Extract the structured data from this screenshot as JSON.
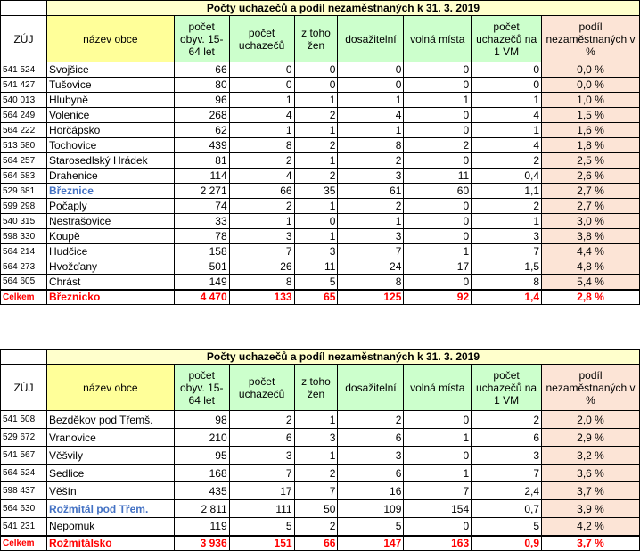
{
  "table1": {
    "title": "Počty uchazečů a podíl nezaměstnaných k 31. 3. 2019",
    "headers": {
      "zuj": "ZÚJ",
      "nazev": "název obce",
      "pocet_obyv": "počet obyv. 15-64 let",
      "pocet_uchazecu": "počet uchazečů",
      "z_toho_zen": "z toho žen",
      "dosazitelni": "dosažitelní",
      "volna_mista": "volná místa",
      "uchazecu_na_vm": "počet uchazečů na 1 VM",
      "podil": "podíl nezaměstnaných v %"
    },
    "rows": [
      {
        "zuj": "541 524",
        "obec": "Svojšice",
        "obyv": "66",
        "uch": "0",
        "zen": "0",
        "dos": "0",
        "vm": "0",
        "na_vm": "0",
        "podil": "0,0 %"
      },
      {
        "zuj": "541 427",
        "obec": "Tušovice",
        "obyv": "80",
        "uch": "0",
        "zen": "0",
        "dos": "0",
        "vm": "0",
        "na_vm": "0",
        "podil": "0,0 %"
      },
      {
        "zuj": "540 013",
        "obec": "Hlubyně",
        "obyv": "96",
        "uch": "1",
        "zen": "1",
        "dos": "1",
        "vm": "1",
        "na_vm": "1",
        "podil": "1,0 %"
      },
      {
        "zuj": "564 249",
        "obec": "Volenice",
        "obyv": "268",
        "uch": "4",
        "zen": "2",
        "dos": "4",
        "vm": "0",
        "na_vm": "4",
        "podil": "1,5 %"
      },
      {
        "zuj": "564 222",
        "obec": "Horčápsko",
        "obyv": "62",
        "uch": "1",
        "zen": "1",
        "dos": "1",
        "vm": "0",
        "na_vm": "1",
        "podil": "1,6 %"
      },
      {
        "zuj": "513 580",
        "obec": "Tochovice",
        "obyv": "439",
        "uch": "8",
        "zen": "2",
        "dos": "8",
        "vm": "2",
        "na_vm": "4",
        "podil": "1,8 %"
      },
      {
        "zuj": "564 257",
        "obec": "Starosedlský Hrádek",
        "obyv": "81",
        "uch": "2",
        "zen": "1",
        "dos": "2",
        "vm": "0",
        "na_vm": "2",
        "podil": "2,5 %"
      },
      {
        "zuj": "564 583",
        "obec": "Drahenice",
        "obyv": "114",
        "uch": "4",
        "zen": "2",
        "dos": "3",
        "vm": "11",
        "na_vm": "0,4",
        "podil": "2,6 %"
      },
      {
        "zuj": "529 681",
        "obec": "Březnice",
        "obyv": "2 271",
        "uch": "66",
        "zen": "35",
        "dos": "61",
        "vm": "60",
        "na_vm": "1,1",
        "podil": "2,7 %",
        "highlight": true
      },
      {
        "zuj": "599 298",
        "obec": "Počaply",
        "obyv": "74",
        "uch": "2",
        "zen": "1",
        "dos": "2",
        "vm": "0",
        "na_vm": "2",
        "podil": "2,7 %"
      },
      {
        "zuj": "540 315",
        "obec": "Nestrašovice",
        "obyv": "33",
        "uch": "1",
        "zen": "0",
        "dos": "1",
        "vm": "0",
        "na_vm": "1",
        "podil": "3,0 %"
      },
      {
        "zuj": "598 330",
        "obec": "Koupě",
        "obyv": "78",
        "uch": "3",
        "zen": "1",
        "dos": "3",
        "vm": "0",
        "na_vm": "3",
        "podil": "3,8 %"
      },
      {
        "zuj": "564 214",
        "obec": "Hudčice",
        "obyv": "158",
        "uch": "7",
        "zen": "3",
        "dos": "7",
        "vm": "1",
        "na_vm": "7",
        "podil": "4,4 %"
      },
      {
        "zuj": "564 273",
        "obec": "Hvožďany",
        "obyv": "501",
        "uch": "26",
        "zen": "11",
        "dos": "24",
        "vm": "17",
        "na_vm": "1,5",
        "podil": "4,8 %"
      },
      {
        "zuj": "564 605",
        "obec": "Chrást",
        "obyv": "149",
        "uch": "8",
        "zen": "5",
        "dos": "8",
        "vm": "0",
        "na_vm": "8",
        "podil": "5,4 %"
      }
    ],
    "total": {
      "zuj": "Celkem",
      "obec": "Březnicko",
      "obyv": "4 470",
      "uch": "133",
      "zen": "65",
      "dos": "125",
      "vm": "92",
      "na_vm": "1,4",
      "podil": "2,8 %"
    }
  },
  "table2": {
    "title": "Počty uchazečů a podíl nezaměstnaných k 31. 3. 2019",
    "headers": {
      "zuj": "ZÚJ",
      "nazev": "název obce",
      "pocet_obyv": "počet obyv. 15-64 let",
      "pocet_uchazecu": "počet uchazečů",
      "z_toho_zen": "z toho žen",
      "dosazitelni": "dosažitelní",
      "volna_mista": "volná místa",
      "uchazecu_na_vm": "počet uchazečů na 1 VM",
      "podil": "podíl nezaměstnaných v %"
    },
    "rows": [
      {
        "zuj": "541 508",
        "obec": "Bezděkov pod Třemš.",
        "obyv": "98",
        "uch": "2",
        "zen": "1",
        "dos": "2",
        "vm": "0",
        "na_vm": "2",
        "podil": "2,0 %"
      },
      {
        "zuj": "529 672",
        "obec": "Vranovice",
        "obyv": "210",
        "uch": "6",
        "zen": "3",
        "dos": "6",
        "vm": "1",
        "na_vm": "6",
        "podil": "2,9 %"
      },
      {
        "zuj": "541 567",
        "obec": "Věšvily",
        "obyv": "95",
        "uch": "3",
        "zen": "1",
        "dos": "3",
        "vm": "0",
        "na_vm": "3",
        "podil": "3,2 %"
      },
      {
        "zuj": "564 524",
        "obec": "Sedlice",
        "obyv": "168",
        "uch": "7",
        "zen": "2",
        "dos": "6",
        "vm": "1",
        "na_vm": "7",
        "podil": "3,6 %"
      },
      {
        "zuj": "598 437",
        "obec": "Věšín",
        "obyv": "435",
        "uch": "17",
        "zen": "7",
        "dos": "16",
        "vm": "7",
        "na_vm": "2,4",
        "podil": "3,7 %"
      },
      {
        "zuj": "564 630",
        "obec": "Rožmitál pod Třem.",
        "obyv": "2 811",
        "uch": "111",
        "zen": "50",
        "dos": "109",
        "vm": "154",
        "na_vm": "0,7",
        "podil": "3,9 %",
        "highlight": true
      },
      {
        "zuj": "541 231",
        "obec": "Nepomuk",
        "obyv": "119",
        "uch": "5",
        "zen": "2",
        "dos": "5",
        "vm": "0",
        "na_vm": "5",
        "podil": "4,2 %"
      }
    ],
    "total": {
      "zuj": "Celkem",
      "obec": "Rožmitálsko",
      "obyv": "3 936",
      "uch": "151",
      "zen": "66",
      "dos": "147",
      "vm": "163",
      "na_vm": "0,9",
      "podil": "3,7 %"
    }
  }
}
